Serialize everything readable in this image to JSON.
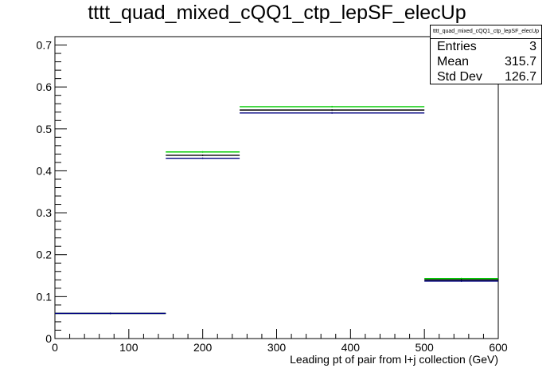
{
  "chart_data": {
    "type": "histogram",
    "title": "tttt_quad_mixed_cQQ1_ctp_lepSF_elecUp",
    "xlabel": "Leading pt of pair from l+j collection (GeV)",
    "ylabel": "",
    "xlim": [
      0,
      600
    ],
    "ylim": [
      0,
      0.72
    ],
    "x_ticks": [
      0,
      100,
      200,
      300,
      400,
      500,
      600
    ],
    "y_ticks": [
      0,
      0.1,
      0.2,
      0.3,
      0.4,
      0.5,
      0.6,
      0.7
    ],
    "bins": [
      [
        0,
        150
      ],
      [
        150,
        250
      ],
      [
        250,
        500
      ],
      [
        500,
        600
      ]
    ],
    "series": [
      {
        "color": "#00cc00",
        "values": [
          0.06,
          0.445,
          0.553,
          0.143
        ]
      },
      {
        "color": "#000000",
        "values": [
          0.06,
          0.437,
          0.545,
          0.14
        ]
      },
      {
        "color": "#000080",
        "values": [
          0.06,
          0.43,
          0.538,
          0.137
        ]
      }
    ],
    "stats": {
      "name": "tttt_quad_mixed_cQQ1_ctp_lepSF_elecUp",
      "entries_label": "Entries",
      "entries": "3",
      "mean_label": "Mean",
      "mean": "315.7",
      "std_label": "Std Dev",
      "std": "126.7"
    }
  }
}
